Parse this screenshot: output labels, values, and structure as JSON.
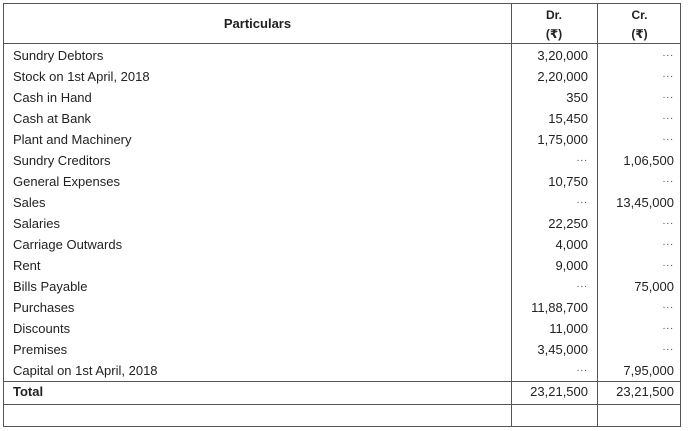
{
  "header": {
    "particulars": "Particulars",
    "dr": "Dr.",
    "dr_unit": "(₹)",
    "cr": "Cr.",
    "cr_unit": "(₹)"
  },
  "rows": [
    {
      "particular": "Sundry Debtors",
      "dr": "3,20,000",
      "cr": "..."
    },
    {
      "particular": "Stock on 1st April, 2018",
      "dr": "2,20,000",
      "cr": "..."
    },
    {
      "particular": "Cash in Hand",
      "dr": "350",
      "cr": "..."
    },
    {
      "particular": "Cash at Bank",
      "dr": "15,450",
      "cr": "..."
    },
    {
      "particular": "Plant and Machinery",
      "dr": "1,75,000",
      "cr": "..."
    },
    {
      "particular": "Sundry Creditors",
      "dr": "...",
      "cr": "1,06,500"
    },
    {
      "particular": "General Expenses",
      "dr": "10,750",
      "cr": "..."
    },
    {
      "particular": "Sales",
      "dr": "...",
      "cr": "13,45,000"
    },
    {
      "particular": "Salaries",
      "dr": "22,250",
      "cr": "..."
    },
    {
      "particular": "Carriage Outwards",
      "dr": "4,000",
      "cr": "..."
    },
    {
      "particular": "Rent",
      "dr": "9,000",
      "cr": "..."
    },
    {
      "particular": "Bills Payable",
      "dr": "...",
      "cr": "75,000"
    },
    {
      "particular": "Purchases",
      "dr": "11,88,700",
      "cr": "..."
    },
    {
      "particular": "Discounts",
      "dr": "11,000",
      "cr": "..."
    },
    {
      "particular": "Premises",
      "dr": "3,45,000",
      "cr": "..."
    },
    {
      "particular": "Capital on 1st April, 2018",
      "dr": "...",
      "cr": "7,95,000"
    }
  ],
  "total": {
    "label": "Total",
    "dr": "23,21,500",
    "cr": "23,21,500"
  }
}
